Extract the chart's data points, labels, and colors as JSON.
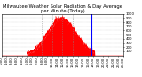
{
  "title_line1": "Milwaukee Weather Solar Radiation & Day Average per Minute (Today)",
  "background_color": "#ffffff",
  "plot_bg_color": "#ffffff",
  "bar_color": "#ff0000",
  "avg_line_color": "#0000ff",
  "grid_color": "#888888",
  "text_color": "#000000",
  "n_points": 1440,
  "peak_minute": 700,
  "peak_value": 880,
  "current_minute": 1060,
  "y_max": 1000,
  "x_ticks": [
    0,
    60,
    120,
    180,
    240,
    300,
    360,
    420,
    480,
    540,
    600,
    660,
    720,
    780,
    840,
    900,
    960,
    1020,
    1080,
    1140,
    1200,
    1260,
    1320,
    1380,
    1440
  ],
  "y_ticks": [
    100,
    200,
    300,
    400,
    500,
    600,
    700,
    800,
    900,
    1000
  ],
  "vlines": [
    480,
    600,
    720,
    840,
    960
  ],
  "title_fontsize": 3.8,
  "tick_fontsize": 2.8,
  "right_y_labels": [
    "1000",
    "900",
    "800",
    "700",
    "600",
    "500",
    "400",
    "300",
    "200",
    "100",
    "0"
  ]
}
